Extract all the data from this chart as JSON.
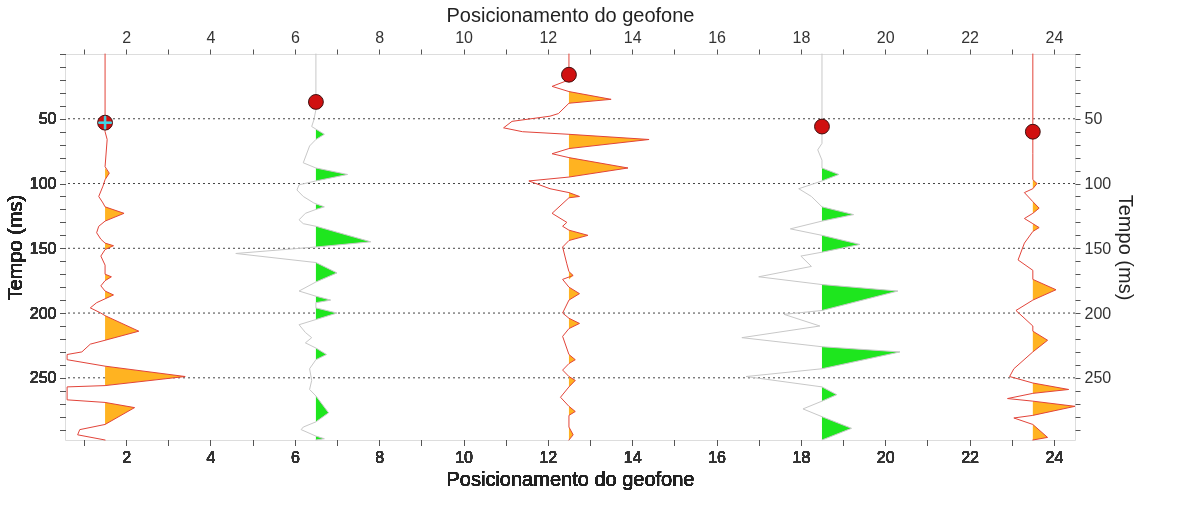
{
  "chart_data": {
    "type": "line",
    "xlabel": "Posicionamento do geofone",
    "x2label": "Posicionamento do geofone",
    "ylabel": "Tempo (ms)",
    "y2label": "Tempo (ms)",
    "xlim": [
      0.55,
      24.5
    ],
    "x2lim": [
      0.55,
      24.5
    ],
    "ylim": [
      298,
      0
    ],
    "y2lim": [
      298,
      0
    ],
    "xticks": [
      {
        "value": 1,
        "label": null
      },
      2,
      {
        "value": 3,
        "label": null
      },
      4,
      {
        "value": 5,
        "label": null
      },
      6,
      {
        "value": 7,
        "label": null
      },
      8,
      {
        "value": 9,
        "label": null
      },
      10,
      {
        "value": 11,
        "label": null
      },
      12,
      {
        "value": 13,
        "label": null
      },
      14,
      {
        "value": 15,
        "label": null
      },
      16,
      {
        "value": 17,
        "label": null
      },
      18,
      {
        "value": 19,
        "label": null
      },
      20,
      {
        "value": 21,
        "label": null
      },
      22,
      {
        "value": 23,
        "label": null
      },
      24
    ],
    "x2ticks": [
      {
        "value": 1,
        "label": null
      },
      2,
      {
        "value": 3,
        "label": null
      },
      4,
      {
        "value": 5,
        "label": null
      },
      6,
      {
        "value": 7,
        "label": null
      },
      8,
      {
        "value": 9,
        "label": null
      },
      10,
      {
        "value": 11,
        "label": null
      },
      12,
      {
        "value": 13,
        "label": null
      },
      14,
      {
        "value": 15,
        "label": null
      },
      16,
      {
        "value": 17,
        "label": null
      },
      18,
      {
        "value": 19,
        "label": null
      },
      20,
      {
        "value": 21,
        "label": null
      },
      22,
      {
        "value": 23,
        "label": null
      },
      24
    ],
    "yticks": [
      {
        "value": 0,
        "label": null
      },
      {
        "value": 10,
        "label": null
      },
      {
        "value": 20,
        "label": null
      },
      {
        "value": 30,
        "label": null
      },
      {
        "value": 40,
        "label": null
      },
      50,
      {
        "value": 60,
        "label": null
      },
      {
        "value": 70,
        "label": null
      },
      {
        "value": 80,
        "label": null
      },
      {
        "value": 90,
        "label": null
      },
      100,
      {
        "value": 110,
        "label": null
      },
      {
        "value": 120,
        "label": null
      },
      {
        "value": 130,
        "label": null
      },
      {
        "value": 140,
        "label": null
      },
      150,
      {
        "value": 160,
        "label": null
      },
      {
        "value": 170,
        "label": null
      },
      {
        "value": 180,
        "label": null
      },
      {
        "value": 190,
        "label": null
      },
      200,
      {
        "value": 210,
        "label": null
      },
      {
        "value": 220,
        "label": null
      },
      {
        "value": 230,
        "label": null
      },
      {
        "value": 240,
        "label": null
      },
      250,
      {
        "value": 260,
        "label": null
      },
      {
        "value": 270,
        "label": null
      },
      {
        "value": 280,
        "label": null
      },
      {
        "value": 290,
        "label": null
      }
    ],
    "y2ticks": [
      {
        "value": 0,
        "label": null
      },
      {
        "value": 10,
        "label": null
      },
      {
        "value": 20,
        "label": null
      },
      {
        "value": 30,
        "label": null
      },
      {
        "value": 40,
        "label": null
      },
      50,
      {
        "value": 60,
        "label": null
      },
      {
        "value": 70,
        "label": null
      },
      {
        "value": 80,
        "label": null
      },
      {
        "value": 90,
        "label": null
      },
      100,
      {
        "value": 110,
        "label": null
      },
      {
        "value": 120,
        "label": null
      },
      {
        "value": 130,
        "label": null
      },
      {
        "value": 140,
        "label": null
      },
      150,
      {
        "value": 160,
        "label": null
      },
      {
        "value": 170,
        "label": null
      },
      {
        "value": 180,
        "label": null
      },
      {
        "value": 190,
        "label": null
      },
      200,
      {
        "value": 210,
        "label": null
      },
      {
        "value": 220,
        "label": null
      },
      {
        "value": 230,
        "label": null
      },
      {
        "value": 240,
        "label": null
      },
      250,
      {
        "value": 260,
        "label": null
      },
      {
        "value": 270,
        "label": null
      },
      {
        "value": 280,
        "label": null
      },
      {
        "value": 290,
        "label": null
      }
    ],
    "grid": "y",
    "series": [
      {
        "type": "area",
        "color": "#ffb321",
        "x": [
          1.5,
          1.6,
          1.5,
          1.5,
          1.95,
          1.5,
          1.5,
          1.7,
          1.5,
          1.5,
          1.65,
          1.5,
          1.5,
          1.7,
          1.5,
          1.5,
          2.3,
          1.5,
          1.5,
          3.4,
          1.5,
          1.5,
          2.2,
          1.5
        ],
        "values": [
          88,
          92,
          97,
          118,
          123,
          129,
          146,
          148,
          151,
          170,
          172,
          175,
          183,
          186,
          189,
          202,
          214,
          221,
          241,
          249,
          256,
          269,
          273,
          286
        ]
      },
      {
        "color": "#e2443a",
        "x": [
          1.5,
          1.5,
          1.55,
          1.5,
          1.6,
          1.5,
          1.45,
          1.35,
          1.45,
          1.5,
          1.95,
          1.5,
          1.35,
          1.3,
          1.4,
          1.5,
          1.7,
          1.5,
          1.4,
          1.5,
          1.5,
          1.65,
          1.5,
          1.4,
          1.5,
          1.7,
          1.5,
          1.3,
          1.15,
          1.4,
          1.5,
          2.3,
          1.5,
          1.15,
          0.95,
          0.6,
          0.6,
          1.5,
          3.4,
          1.5,
          0.6,
          0.6,
          1.5,
          2.2,
          1.5,
          0.9,
          0.85,
          1.5
        ],
        "values": [
          0,
          60,
          66,
          87,
          92,
          97,
          102,
          110,
          115,
          118,
          123,
          129,
          133,
          138,
          143,
          146,
          148,
          151,
          156,
          163,
          170,
          172,
          175,
          179,
          183,
          186,
          189,
          192,
          196,
          200,
          202,
          214,
          221,
          224,
          230,
          232,
          236,
          241,
          249,
          256,
          257,
          267,
          269,
          273,
          286,
          290,
          294,
          298
        ]
      },
      {
        "type": "area",
        "color": "#1ee61e",
        "x": [
          6.5,
          6.7,
          6.5,
          6.5,
          7.25,
          6.5,
          6.5,
          6.7,
          6.5,
          6.5,
          7.8,
          6.5,
          6.5,
          7.0,
          6.5,
          6.5,
          6.85,
          6.5,
          6.5,
          7.0,
          6.5,
          6.5,
          6.75,
          6.5,
          6.5,
          6.8,
          6.5,
          6.5,
          6.7,
          6.5
        ],
        "values": [
          58,
          62,
          66,
          88,
          93,
          98,
          116,
          118,
          120,
          133,
          145,
          149,
          161,
          169,
          176,
          187,
          190,
          192,
          196,
          200,
          205,
          227,
          232,
          236,
          264,
          277,
          284,
          295,
          297,
          298
        ]
      },
      {
        "color": "#c8c8c8",
        "x": [
          6.5,
          6.5,
          6.45,
          6.4,
          6.5,
          6.7,
          6.5,
          6.35,
          6.2,
          6.5,
          7.25,
          6.5,
          6.1,
          6.05,
          6.2,
          6.45,
          6.7,
          6.5,
          6.25,
          6.1,
          6.2,
          6.5,
          7.8,
          6.5,
          4.6,
          6.5,
          7.0,
          6.5,
          6.1,
          6.5,
          6.85,
          6.5,
          6.5,
          7.0,
          6.5,
          6.1,
          6.25,
          6.4,
          6.25,
          6.5,
          6.75,
          6.5,
          6.35,
          6.4,
          6.35,
          6.5,
          6.8,
          6.5,
          6.2,
          6.15,
          6.5,
          6.7,
          6.5
        ],
        "values": [
          0,
          43,
          51,
          56,
          58,
          62,
          66,
          71,
          84,
          88,
          93,
          98,
          101,
          105,
          110,
          115,
          118,
          120,
          123,
          128,
          131,
          133,
          145,
          149,
          154,
          161,
          169,
          176,
          183,
          187,
          190,
          192,
          196,
          200,
          205,
          209,
          215,
          219,
          223,
          227,
          232,
          236,
          243,
          252,
          259,
          264,
          277,
          284,
          288,
          290,
          295,
          297,
          298
        ]
      },
      {
        "type": "area",
        "color": "#ffb321",
        "x": [
          12.5,
          13.5,
          12.5,
          12.5,
          14.4,
          12.5,
          12.5,
          13.9,
          12.5,
          12.5,
          12.75,
          12.5,
          12.5,
          12.95,
          12.5,
          12.5,
          12.6,
          12.5,
          12.5,
          12.75,
          12.5,
          12.5,
          12.75,
          12.5,
          12.5,
          12.65,
          12.5,
          12.5,
          12.65,
          12.5,
          12.5,
          12.65,
          12.5,
          12.5,
          12.6,
          12.5
        ],
        "values": [
          29,
          35,
          38,
          62,
          66,
          73,
          80,
          88,
          95,
          107,
          110,
          111,
          136,
          140,
          144,
          168,
          171,
          174,
          180,
          185,
          190,
          204,
          208,
          212,
          232,
          236,
          239,
          249,
          252,
          257,
          272,
          276,
          279,
          288,
          294,
          298
        ]
      },
      {
        "color": "#e2443a",
        "x": [
          12.5,
          12.5,
          12.1,
          12.5,
          13.5,
          12.5,
          12.25,
          12.05,
          11.15,
          10.95,
          11.4,
          12.5,
          14.4,
          12.5,
          12.1,
          12.5,
          13.9,
          12.5,
          11.55,
          12.05,
          12.5,
          12.75,
          12.5,
          12.1,
          12.45,
          12.35,
          12.5,
          12.95,
          12.5,
          12.35,
          12.45,
          12.5,
          12.6,
          12.35,
          12.5,
          12.75,
          12.5,
          12.35,
          12.5,
          12.75,
          12.5,
          12.35,
          12.5,
          12.65,
          12.5,
          12.35,
          12.5,
          12.65,
          12.5,
          12.3,
          12.5,
          12.65,
          12.5,
          12.5,
          12.6,
          12.5
        ],
        "values": [
          0,
          20,
          25,
          29,
          35,
          38,
          46,
          48,
          52,
          57,
          60,
          62,
          66,
          73,
          77,
          80,
          88,
          95,
          98,
          104,
          107,
          110,
          111,
          123,
          130,
          133,
          136,
          140,
          144,
          149,
          162,
          168,
          171,
          174,
          180,
          185,
          190,
          200,
          204,
          208,
          212,
          218,
          232,
          236,
          239,
          244,
          249,
          252,
          257,
          265,
          272,
          276,
          279,
          288,
          294,
          298
        ]
      },
      {
        "type": "area",
        "color": "#1ee61e",
        "x": [
          18.5,
          18.9,
          18.5,
          18.5,
          19.25,
          18.5,
          18.5,
          19.4,
          18.5,
          18.5,
          20.3,
          18.5,
          18.5,
          20.35,
          18.5,
          18.5,
          18.85,
          18.5,
          18.5,
          19.2,
          18.5
        ],
        "values": [
          88,
          93,
          98,
          118,
          124,
          129,
          140,
          147,
          153,
          178,
          183,
          198,
          226,
          230,
          243,
          257,
          263,
          268,
          280,
          289,
          298
        ]
      },
      {
        "color": "#c8c8c8",
        "x": [
          18.5,
          18.5,
          18.4,
          18.5,
          18.5,
          18.9,
          18.5,
          17.95,
          18.25,
          18.5,
          19.25,
          18.5,
          17.75,
          18.5,
          19.4,
          18.5,
          18.0,
          18.25,
          17.0,
          18.5,
          20.3,
          18.5,
          17.6,
          18.45,
          16.6,
          18.5,
          20.35,
          18.5,
          16.7,
          18.5,
          18.85,
          18.5,
          18.05,
          18.5,
          19.2,
          18.5
        ],
        "values": [
          0,
          69,
          74,
          82,
          88,
          93,
          98,
          104,
          110,
          118,
          124,
          129,
          135,
          140,
          147,
          153,
          156,
          164,
          172,
          178,
          183,
          198,
          201,
          210,
          219,
          226,
          230,
          243,
          249,
          257,
          263,
          268,
          274,
          280,
          289,
          298
        ]
      },
      {
        "type": "area",
        "color": "#ffb321",
        "x": [
          23.5,
          23.6,
          23.5,
          23.5,
          23.65,
          23.5,
          23.5,
          23.65,
          23.5,
          23.5,
          24.05,
          23.5,
          23.5,
          23.85,
          23.5,
          23.5,
          24.35,
          23.5,
          23.5,
          24.5,
          23.5,
          23.5,
          23.85,
          23.5
        ],
        "values": [
          97,
          100,
          104,
          114,
          119,
          123,
          131,
          134,
          137,
          174,
          182,
          190,
          214,
          221,
          230,
          254,
          259,
          262,
          268,
          272,
          279,
          286,
          296,
          298
        ]
      },
      {
        "color": "#e2443a",
        "x": [
          23.5,
          23.5,
          23.5,
          23.6,
          23.5,
          23.3,
          23.5,
          23.65,
          23.5,
          23.3,
          23.5,
          23.65,
          23.5,
          23.3,
          23.15,
          23.5,
          23.5,
          24.05,
          23.5,
          23.1,
          23.5,
          23.5,
          23.85,
          23.5,
          23.05,
          22.95,
          23.5,
          24.35,
          23.5,
          22.9,
          23.5,
          24.5,
          23.5,
          23.05,
          23.5,
          23.85,
          23.5
        ],
        "values": [
          0,
          77,
          97,
          100,
          104,
          107,
          114,
          119,
          123,
          127,
          131,
          134,
          137,
          146,
          159,
          167,
          174,
          182,
          190,
          198,
          210,
          214,
          221,
          230,
          243,
          249,
          254,
          259,
          262,
          266,
          268,
          272,
          279,
          281,
          286,
          296,
          298
        ]
      },
      {
        "type": "scatter",
        "color": "#d01010",
        "marker": "circle",
        "x": [
          1.5,
          6.5,
          12.5,
          18.5,
          23.5
        ],
        "values": [
          53,
          37,
          16,
          56,
          60
        ]
      },
      {
        "type": "scatter",
        "color": "#40d8e8",
        "marker": "cross",
        "x": [
          1.5
        ],
        "values": [
          53
        ]
      }
    ]
  }
}
